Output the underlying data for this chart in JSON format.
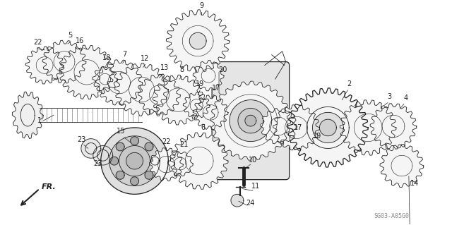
{
  "bg_color": "#ffffff",
  "diagram_color": "#222222",
  "label_color": "#111111",
  "watermark": "SG03-A05G0",
  "fr_label": "FR."
}
